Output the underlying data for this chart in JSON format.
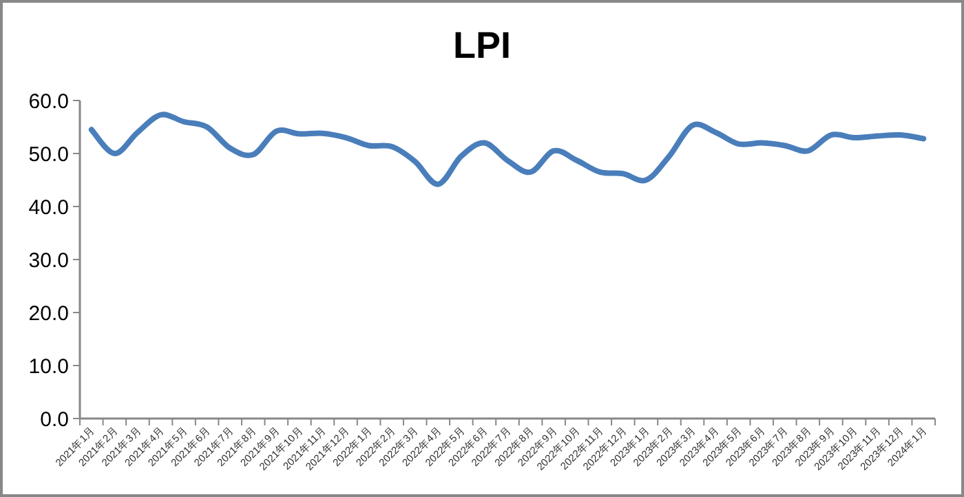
{
  "chart_data": {
    "type": "line",
    "title": "LPI",
    "categories": [
      "2021年1月",
      "2021年2月",
      "2021年3月",
      "2021年4月",
      "2021年5月",
      "2021年6月",
      "2021年7月",
      "2021年8月",
      "2021年9月",
      "2021年10月",
      "2021年11月",
      "2021年12月",
      "2022年1月",
      "2022年2月",
      "2022年3月",
      "2022年4月",
      "2022年5月",
      "2022年6月",
      "2022年7月",
      "2022年8月",
      "2022年9月",
      "2022年10月",
      "2022年11月",
      "2022年12月",
      "2023年1月",
      "2023年2月",
      "2023年3月",
      "2023年4月",
      "2023年5月",
      "2023年6月",
      "2023年7月",
      "2023年8月",
      "2023年9月",
      "2023年10月",
      "2023年11月",
      "2023年12月",
      "2024年1月"
    ],
    "series": [
      {
        "color": "#4a7ebb",
        "values": [
          54.5,
          50.0,
          54.0,
          57.3,
          56.0,
          55.0,
          51.0,
          49.8,
          54.2,
          53.7,
          53.8,
          53.0,
          51.5,
          51.3,
          48.5,
          44.2,
          49.5,
          52.0,
          48.7,
          46.5,
          50.5,
          48.7,
          46.5,
          46.2,
          45.0,
          49.5,
          55.3,
          54.0,
          51.8,
          52.0,
          51.5,
          50.5,
          53.5,
          53.0,
          53.3,
          53.5,
          52.8
        ]
      }
    ],
    "ylim": [
      0,
      60
    ],
    "yticks": [
      {
        "value": 0,
        "label": "0.0"
      },
      {
        "value": 10,
        "label": "10.0"
      },
      {
        "value": 20,
        "label": "20.0"
      },
      {
        "value": 30,
        "label": "30.0"
      },
      {
        "value": 40,
        "label": "40.0"
      },
      {
        "value": 50,
        "label": "50.0"
      },
      {
        "value": 60,
        "label": "60.0"
      }
    ]
  }
}
